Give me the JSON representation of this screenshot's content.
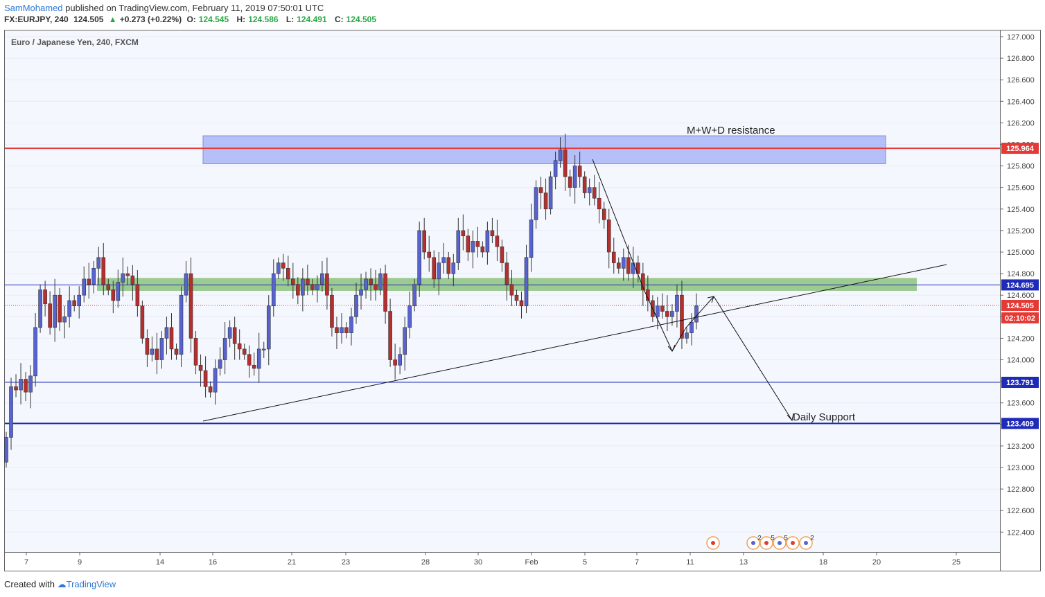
{
  "header": {
    "author": "SamMohamed",
    "published": "published on TradingView.com, February 11, 2019 07:50:01 UTC",
    "symbol": "FX:EURJPY, 240",
    "last": "124.505",
    "arrow": "▲",
    "change": "+0.273 (+0.22%)",
    "o_label": "O:",
    "o": "124.545",
    "h_label": "H:",
    "h": "124.586",
    "l_label": "L:",
    "l": "124.491",
    "c_label": "C:",
    "c": "124.505"
  },
  "instrument_label": "Euro / Japanese Yen, 240, FXCM",
  "footer": {
    "created": "Created with",
    "brand": "TradingView"
  },
  "colors": {
    "bull": "#5763d0",
    "bear": "#b52f2f",
    "resistance_line": "#e53935",
    "support_line": "#1e2bb8",
    "zone_blue": "#a9b6f7",
    "zone_green": "#8cc37f"
  },
  "chart_data": {
    "type": "candlestick",
    "title": "Euro / Japanese Yen, 240, FXCM",
    "ylim": [
      122.2,
      127.1
    ],
    "y_ticks": [
      "127.000",
      "126.800",
      "126.600",
      "126.400",
      "126.200",
      "126.000",
      "125.800",
      "125.600",
      "125.400",
      "125.200",
      "125.000",
      "124.800",
      "124.600",
      "124.400",
      "124.200",
      "124.000",
      "123.800",
      "123.600",
      "123.400",
      "123.200",
      "123.000",
      "122.800",
      "122.600",
      "122.400"
    ],
    "x_ticks": [
      "7",
      "9",
      "14",
      "16",
      "21",
      "23",
      "28",
      "30",
      "Feb",
      "5",
      "7",
      "11",
      "13",
      "18",
      "20",
      "25"
    ],
    "price_labels": [
      {
        "value": 125.964,
        "text": "125.964",
        "color": "#e53935"
      },
      {
        "value": 124.695,
        "text": "124.695",
        "color": "#1e2bb8"
      },
      {
        "value": 124.505,
        "text": "124.505",
        "color": "#e53935"
      },
      {
        "text": "02:10:02",
        "color": "#e53935"
      },
      {
        "value": 123.791,
        "text": "123.791",
        "color": "#1e2bb8"
      },
      {
        "value": 123.409,
        "text": "123.409",
        "color": "#1e2bb8"
      }
    ],
    "annotations": [
      {
        "text": "M+W+D resistance"
      },
      {
        "text": "Daily Support"
      }
    ],
    "events": [
      "2",
      "5",
      "5",
      "2"
    ],
    "zones": [
      {
        "kind": "resistance",
        "low": 125.82,
        "high": 126.08
      },
      {
        "kind": "support",
        "low": 124.64,
        "high": 124.76
      }
    ],
    "horizontal_lines": [
      125.964,
      124.695,
      124.505,
      123.791,
      123.409
    ],
    "closes": [
      123.28,
      123.75,
      123.72,
      123.82,
      123.7,
      123.85,
      124.3,
      124.65,
      124.52,
      124.3,
      124.6,
      124.35,
      124.4,
      124.55,
      124.5,
      124.6,
      124.75,
      124.7,
      124.85,
      124.95,
      124.7,
      124.65,
      124.55,
      124.72,
      124.8,
      124.78,
      124.7,
      124.5,
      124.2,
      124.05,
      124.1,
      124.0,
      124.2,
      124.3,
      124.1,
      124.05,
      124.6,
      124.8,
      124.2,
      123.95,
      123.9,
      123.75,
      123.7,
      123.92,
      124.0,
      124.2,
      124.3,
      124.15,
      124.1,
      124.05,
      123.95,
      123.92,
      124.1,
      124.1,
      124.5,
      124.8,
      124.9,
      124.85,
      124.75,
      124.7,
      124.6,
      124.75,
      124.7,
      124.65,
      124.7,
      124.8,
      124.6,
      124.3,
      124.25,
      124.3,
      124.25,
      124.4,
      124.6,
      124.65,
      124.75,
      124.7,
      124.65,
      124.8,
      124.45,
      124.0,
      123.95,
      124.05,
      124.3,
      124.5,
      124.7,
      125.2,
      125.0,
      124.95,
      124.75,
      124.9,
      124.95,
      124.8,
      124.9,
      125.2,
      125.15,
      125.0,
      125.1,
      125.05,
      125.0,
      125.2,
      125.15,
      125.05,
      124.9,
      124.7,
      124.6,
      124.55,
      124.5,
      124.95,
      125.3,
      125.6,
      125.55,
      125.4,
      125.7,
      125.85,
      125.95,
      125.7,
      125.6,
      125.8,
      125.7,
      125.55,
      125.6,
      125.5,
      125.4,
      125.3,
      125.0,
      124.9,
      124.85,
      124.95,
      124.8,
      124.9,
      124.8,
      124.65,
      124.55,
      124.4,
      124.5,
      124.45,
      124.4,
      124.45,
      124.6,
      124.2,
      124.25,
      124.35,
      124.5
    ]
  }
}
